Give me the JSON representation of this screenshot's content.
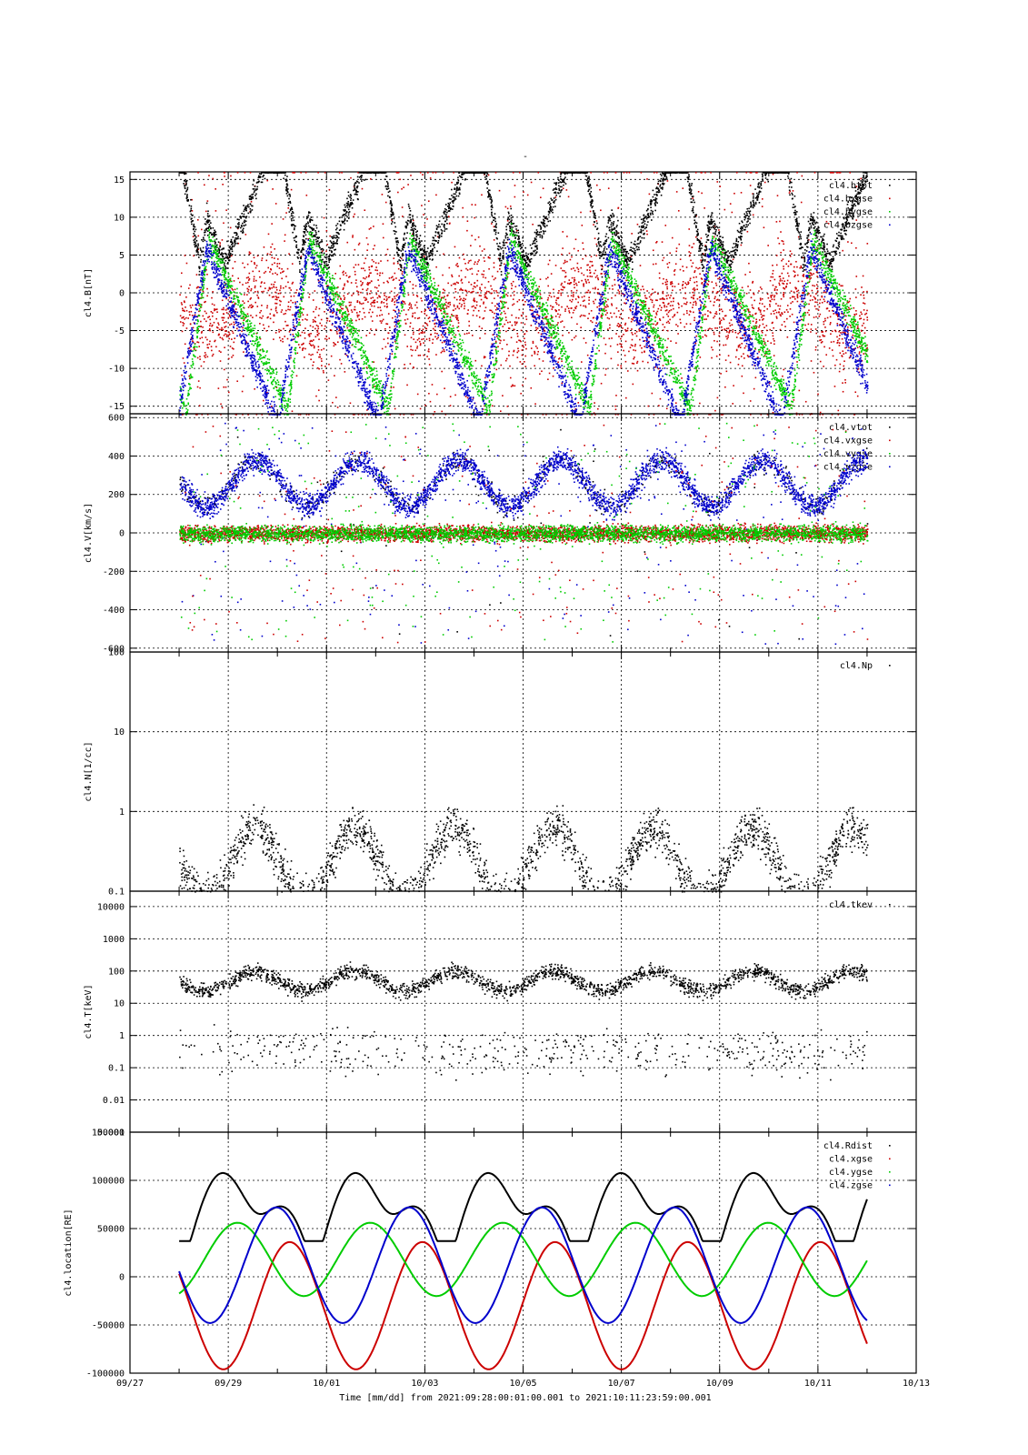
{
  "figure": {
    "title": "-",
    "footer": "Time [mm/dd]  from 2021:09:28:00:01:00.001  to  2021:10:11:23:59:00.001"
  },
  "colors": {
    "black": "#000000",
    "red": "#cc0000",
    "green": "#00cc00",
    "blue": "#0000cc"
  },
  "chart_data": [
    {
      "type": "scatter",
      "ylabel": "cl4.B[nT]",
      "yscale": "linear",
      "ylim": [
        -16,
        16
      ],
      "yticks": [
        -15,
        -10,
        -5,
        0,
        5,
        10,
        15
      ],
      "yticklabels": [
        "-15",
        "-10",
        "-5",
        "0",
        "5",
        "10",
        "15"
      ],
      "xlim": [
        0,
        16
      ],
      "legend_position": "top-right",
      "grid": true,
      "series": [
        {
          "name": "cl4.btot",
          "color": "#000000"
        },
        {
          "name": "cl4.bxgse",
          "color": "#cc0000"
        },
        {
          "name": "cl4.bygse",
          "color": "#00cc00"
        },
        {
          "name": "cl4.bzgse",
          "color": "#0000cc"
        }
      ]
    },
    {
      "type": "scatter",
      "ylabel": "cl4.V[km/s]",
      "yscale": "linear",
      "ylim": [
        -620,
        620
      ],
      "yticks": [
        -600,
        -400,
        -200,
        0,
        200,
        400,
        600
      ],
      "yticklabels": [
        "-600",
        "-400",
        "-200",
        "0",
        "200",
        "400",
        "600"
      ],
      "xlim": [
        0,
        16
      ],
      "legend_position": "top-right",
      "grid": true,
      "series": [
        {
          "name": "cl4.vtot",
          "color": "#000000"
        },
        {
          "name": "cl4.vxgse",
          "color": "#cc0000"
        },
        {
          "name": "cl4.vygse",
          "color": "#00cc00"
        },
        {
          "name": "cl4.vzgse",
          "color": "#0000cc"
        }
      ]
    },
    {
      "type": "scatter",
      "ylabel": "cl4.N[1/cc]",
      "yscale": "log",
      "ylim": [
        0.1,
        100
      ],
      "yticks": [
        0.1,
        1,
        10,
        100
      ],
      "yticklabels": [
        "0.1",
        "1",
        "10",
        "100"
      ],
      "xlim": [
        0,
        16
      ],
      "legend_position": "top-right",
      "grid": true,
      "series": [
        {
          "name": "cl4.Np",
          "color": "#000000"
        }
      ]
    },
    {
      "type": "scatter",
      "ylabel": "cl4.T[keV]",
      "yscale": "log",
      "ylim": [
        0.001,
        30000
      ],
      "yticks": [
        0.001,
        0.01,
        0.1,
        1,
        10,
        100,
        1000,
        10000
      ],
      "yticklabels": [
        "0.001",
        "0.01",
        "0.1",
        "1",
        "10",
        "100",
        "1000",
        "10000"
      ],
      "xlim": [
        0,
        16
      ],
      "legend_position": "top-right",
      "grid": true,
      "series": [
        {
          "name": "cl4.tkev",
          "color": "#000000"
        }
      ]
    },
    {
      "type": "line",
      "ylabel": "cl4.location[RE]",
      "yscale": "linear",
      "ylim": [
        -100000,
        150000
      ],
      "yticks": [
        -100000,
        -50000,
        0,
        50000,
        100000,
        150000
      ],
      "yticklabels": [
        "-100000",
        "-50000",
        "0",
        "50000",
        "100000",
        "150000"
      ],
      "xlim": [
        0,
        16
      ],
      "xticks": [
        0,
        2,
        4,
        6,
        8,
        10,
        12,
        14,
        16
      ],
      "xticklabels": [
        "09/27",
        "09/29",
        "10/01",
        "10/03",
        "10/05",
        "10/07",
        "10/09",
        "10/11",
        "10/13"
      ],
      "xlabel": "Time [mm/dd]",
      "legend_position": "top-right",
      "grid": true,
      "series": [
        {
          "name": "cl4.Rdist",
          "color": "#000000"
        },
        {
          "name": "cl4.xgse",
          "color": "#cc0000"
        },
        {
          "name": "cl4.ygse",
          "color": "#00cc00"
        },
        {
          "name": "cl4.zgse",
          "color": "#0000cc"
        }
      ]
    }
  ]
}
